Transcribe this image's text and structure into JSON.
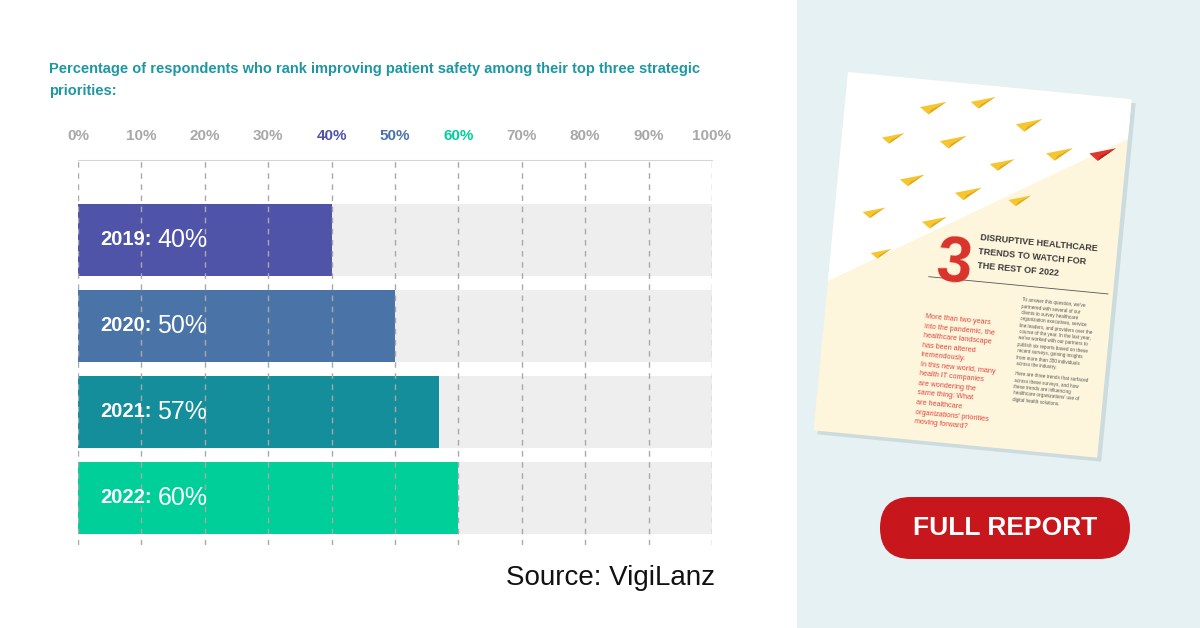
{
  "chart_data": {
    "type": "bar",
    "orientation": "horizontal",
    "title": "Percentage of respondents who rank improving patient safety among their top three strategic priorities:",
    "categories": [
      "2019:",
      "2020:",
      "2021:",
      "2022:"
    ],
    "values": [
      40,
      50,
      57,
      60
    ],
    "value_labels": [
      "40%",
      "50%",
      "57%",
      "60%"
    ],
    "colors": [
      "#5054a8",
      "#4a74a8",
      "#138e9a",
      "#00cf9a"
    ],
    "xlim": [
      0,
      100
    ],
    "xticks": [
      {
        "value": 0,
        "label": "0%"
      },
      {
        "value": 10,
        "label": "10%"
      },
      {
        "value": 20,
        "label": "20%"
      },
      {
        "value": 30,
        "label": "30%"
      },
      {
        "value": 40,
        "label": "40%"
      },
      {
        "value": 50,
        "label": "50%"
      },
      {
        "value": 60,
        "label": "60%"
      },
      {
        "value": 70,
        "label": "70%"
      },
      {
        "value": 80,
        "label": "80%"
      },
      {
        "value": 90,
        "label": "90%"
      },
      {
        "value": 100,
        "label": "100%"
      }
    ],
    "grid": true,
    "data_labels": true,
    "tick_labels": "x"
  },
  "source": "Source: VigiLanz",
  "report": {
    "number": "3",
    "title_lines": [
      "DISRUPTIVE HEALTHCARE",
      "TRENDS TO WATCH FOR",
      "THE REST OF 2022"
    ],
    "intro_lines": [
      "More than two years",
      "into the pandemic, the",
      "healthcare landscape",
      "has been altered",
      "tremendously.",
      "In this new world, many",
      "health IT companies",
      "are wondering the",
      "same thing: What",
      "are healthcare",
      "organizations' priorities",
      "moving forward?"
    ],
    "body_lines": [
      "To answer this question, we've",
      "partnered with several of our",
      "clients to survey healthcare",
      "organization executives, service",
      "line leaders, and providers over the",
      "course of the year. In the last year,",
      "we've worked with our partners to",
      "publish six reports based on these",
      "recent surveys, gaining insights",
      "from more than 350 individuals",
      "across the industry."
    ],
    "closing_lines": [
      "Here are three trends that surfaced",
      "across these surveys, and how",
      "these trends are influencing",
      "healthcare organizations' use of",
      "digital health solutions."
    ]
  },
  "button": "FULL REPORT"
}
